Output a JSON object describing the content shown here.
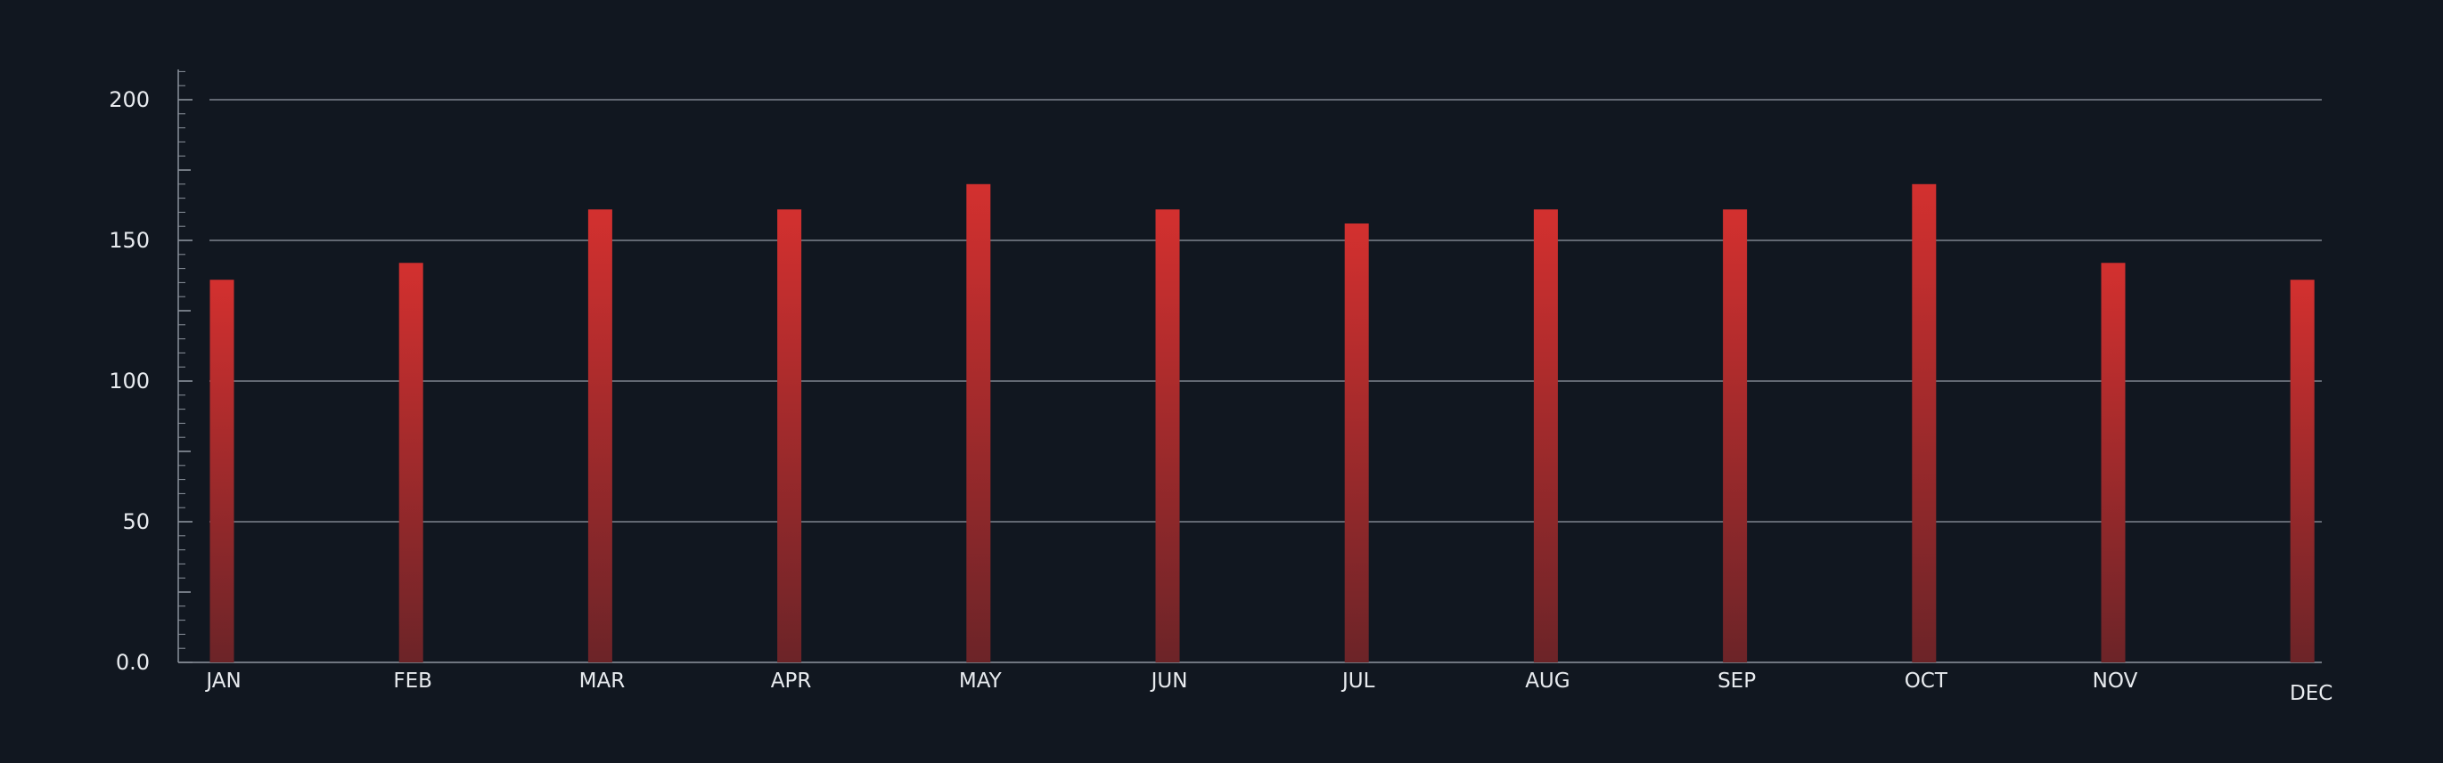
{
  "chart_data": {
    "type": "bar",
    "title": "",
    "xlabel": "",
    "ylabel": "",
    "categories": [
      "JAN",
      "FEB",
      "MAR",
      "APR",
      "MAY",
      "JUN",
      "JUL",
      "AUG",
      "SEP",
      "OCT",
      "NOV",
      "DEC"
    ],
    "values": [
      136,
      142,
      161,
      161,
      170,
      161,
      156,
      161,
      161,
      170,
      142,
      136
    ],
    "ylim": [
      0,
      200
    ],
    "y_ticks": [
      0,
      50,
      100,
      150,
      200
    ],
    "y_tick_labels": [
      "0.0",
      "50",
      "100",
      "150",
      "200"
    ],
    "grid": true,
    "legend": "none"
  },
  "colors": {
    "background": "#111720",
    "bar_top": "#d3302f",
    "bar_bottom": "#6c2428",
    "grid": "#a9b0ba",
    "axis": "#8b929c",
    "text": "#e8ebef"
  }
}
